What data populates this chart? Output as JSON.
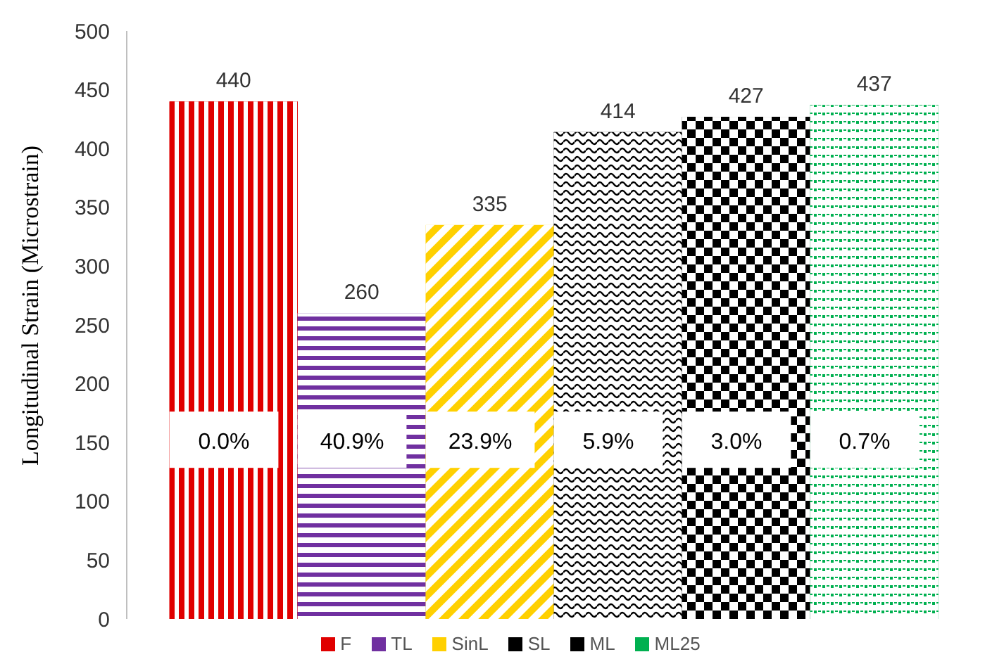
{
  "chart_data": {
    "type": "bar",
    "ylabel": "Longitudinal Strain (Microstrain)",
    "categories": [
      null
    ],
    "series": [
      {
        "name": "F",
        "color": "#e00000",
        "values": [
          440
        ]
      },
      {
        "name": "TL",
        "color": "#7030a0",
        "values": [
          260
        ]
      },
      {
        "name": "SinL",
        "color": "#ffd000",
        "values": [
          335
        ]
      },
      {
        "name": "SL",
        "color": "#000000",
        "values": [
          414
        ]
      },
      {
        "name": "ML",
        "color": "#000000",
        "values": [
          427
        ]
      },
      {
        "name": "ML25",
        "color": "#00b050",
        "values": [
          437
        ]
      }
    ],
    "ylim": [
      0,
      500
    ],
    "yticks": [
      0,
      50,
      100,
      150,
      200,
      250,
      300,
      350,
      400,
      450,
      500
    ],
    "grid": false,
    "legend": "bottom",
    "data_labels": true,
    "annotations": [
      "0.0%",
      "40.9%",
      "23.9%",
      "5.9%",
      "3.0%",
      "0.7%"
    ]
  }
}
